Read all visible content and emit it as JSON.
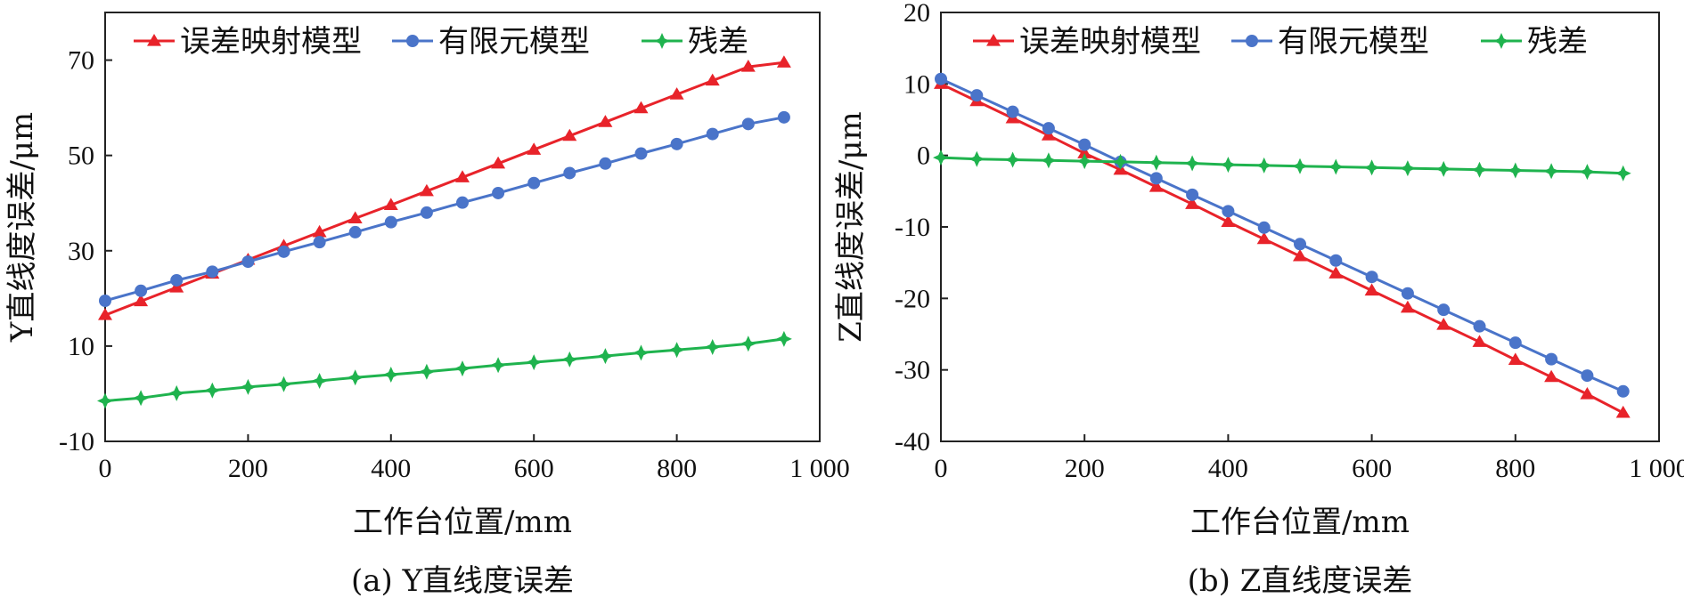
{
  "chart_data": [
    {
      "type": "line",
      "caption": "(a) Y直线度误差",
      "xlabel": "工作台位置/mm",
      "ylabel": "Y直线度误差/μm",
      "xlim": [
        0,
        1000
      ],
      "ylim": [
        -10,
        80
      ],
      "xticks": [
        0,
        200,
        400,
        600,
        800,
        1000
      ],
      "xtick_labels": [
        "0",
        "200",
        "400",
        "600",
        "800",
        "1 000"
      ],
      "yticks": [
        -10,
        10,
        30,
        50,
        70
      ],
      "ytick_labels": [
        "-10",
        "10",
        "30",
        "50",
        "70"
      ],
      "legend_position": "top",
      "grid": false,
      "x": [
        0,
        50,
        100,
        150,
        200,
        250,
        300,
        350,
        400,
        450,
        500,
        550,
        600,
        650,
        700,
        750,
        800,
        850,
        900,
        950
      ],
      "series": [
        {
          "name": "误差映射模型",
          "color": "#e8232a",
          "marker": "triangle",
          "values": [
            16.5,
            19.4,
            22.3,
            25.2,
            28.1,
            31.0,
            33.9,
            36.8,
            39.6,
            42.5,
            45.4,
            48.3,
            51.2,
            54.1,
            57.0,
            59.9,
            62.8,
            65.7,
            68.6,
            69.5
          ]
        },
        {
          "name": "有限元模型",
          "color": "#4a74c9",
          "marker": "circle",
          "values": [
            19.5,
            21.6,
            23.8,
            25.6,
            27.7,
            29.8,
            31.8,
            33.9,
            36.0,
            38.0,
            40.1,
            42.1,
            44.2,
            46.3,
            48.3,
            50.4,
            52.4,
            54.5,
            56.6,
            58.0
          ]
        },
        {
          "name": "残差",
          "color": "#1fb34e",
          "marker": "star",
          "values": [
            -1.5,
            -0.9,
            0.1,
            0.7,
            1.4,
            2.0,
            2.7,
            3.4,
            4.0,
            4.6,
            5.3,
            6.0,
            6.6,
            7.2,
            7.9,
            8.6,
            9.2,
            9.8,
            10.5,
            11.5
          ]
        }
      ]
    },
    {
      "type": "line",
      "caption": "(b) Z直线度误差",
      "xlabel": "工作台位置/mm",
      "ylabel": "Z直线度误差/μm",
      "xlim": [
        0,
        1000
      ],
      "ylim": [
        -40,
        20
      ],
      "xticks": [
        0,
        200,
        400,
        600,
        800,
        1000
      ],
      "xtick_labels": [
        "0",
        "200",
        "400",
        "600",
        "800",
        "1 000"
      ],
      "yticks": [
        -40,
        -30,
        -20,
        -10,
        0,
        10,
        20
      ],
      "ytick_labels": [
        "-40",
        "-30",
        "-20",
        "-10",
        "0",
        "10",
        "20"
      ],
      "legend_position": "top",
      "grid": false,
      "x": [
        0,
        50,
        100,
        150,
        200,
        250,
        300,
        350,
        400,
        450,
        500,
        550,
        600,
        650,
        700,
        750,
        800,
        850,
        900,
        950
      ],
      "series": [
        {
          "name": "误差映射模型",
          "color": "#e8232a",
          "marker": "triangle",
          "values": [
            10.0,
            7.6,
            5.2,
            2.8,
            0.3,
            -2.0,
            -4.4,
            -6.8,
            -9.3,
            -11.7,
            -14.1,
            -16.5,
            -18.9,
            -21.3,
            -23.7,
            -26.1,
            -28.6,
            -31.0,
            -33.4,
            -36.0
          ]
        },
        {
          "name": "有限元模型",
          "color": "#4a74c9",
          "marker": "circle",
          "values": [
            10.7,
            8.4,
            6.1,
            3.8,
            1.5,
            -0.9,
            -3.2,
            -5.5,
            -7.8,
            -10.1,
            -12.4,
            -14.7,
            -17.0,
            -19.3,
            -21.6,
            -23.9,
            -26.2,
            -28.5,
            -30.8,
            -33.0
          ]
        },
        {
          "name": "残差",
          "color": "#1fb34e",
          "marker": "star",
          "values": [
            -0.3,
            -0.5,
            -0.6,
            -0.7,
            -0.8,
            -0.9,
            -1.0,
            -1.1,
            -1.3,
            -1.4,
            -1.5,
            -1.6,
            -1.7,
            -1.8,
            -1.9,
            -2.0,
            -2.1,
            -2.2,
            -2.3,
            -2.5
          ]
        }
      ]
    }
  ]
}
